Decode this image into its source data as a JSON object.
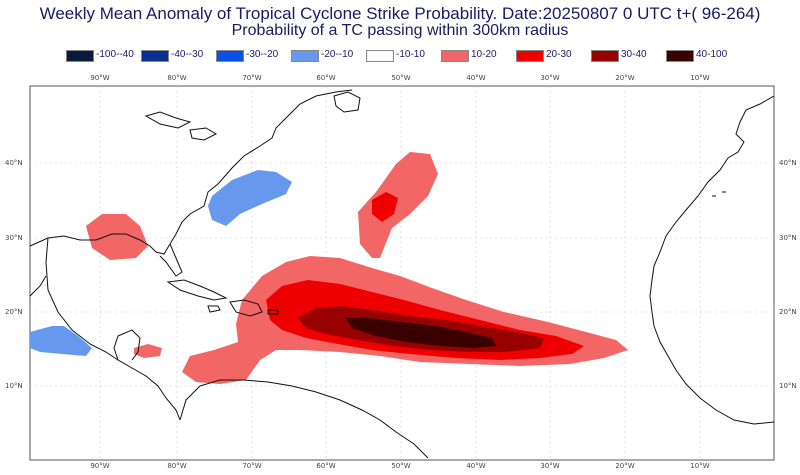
{
  "title": {
    "line1": "Weekly Mean Anomaly of Tropical Cyclone Strike Probability. Date:20250807  0 UTC t+( 96-264)",
    "line2": "Probability of a TC passing within  300km radius"
  },
  "legend": [
    {
      "label": "-100--40",
      "color": "#0a1a3a"
    },
    {
      "label": "-40--30",
      "color": "#0a2f8f"
    },
    {
      "label": "-30--20",
      "color": "#0a4fe6"
    },
    {
      "label": "-20--10",
      "color": "#6699ee"
    },
    {
      "label": "-10-10",
      "color": "#ffffff"
    },
    {
      "label": "10-20",
      "color": "#f26666"
    },
    {
      "label": "20-30",
      "color": "#ee0000"
    },
    {
      "label": "30-40",
      "color": "#990000"
    },
    {
      "label": "40-100",
      "color": "#3a0000"
    }
  ],
  "map": {
    "lon_labels": [
      "90°W",
      "80°W",
      "70°W",
      "60°W",
      "50°W",
      "40°W",
      "30°W",
      "20°W",
      "10°W"
    ],
    "lat_labels": [
      "40°N",
      "30°N",
      "20°N",
      "10°N"
    ],
    "coast_color": "#111111",
    "grid_color": "#cccccc"
  }
}
